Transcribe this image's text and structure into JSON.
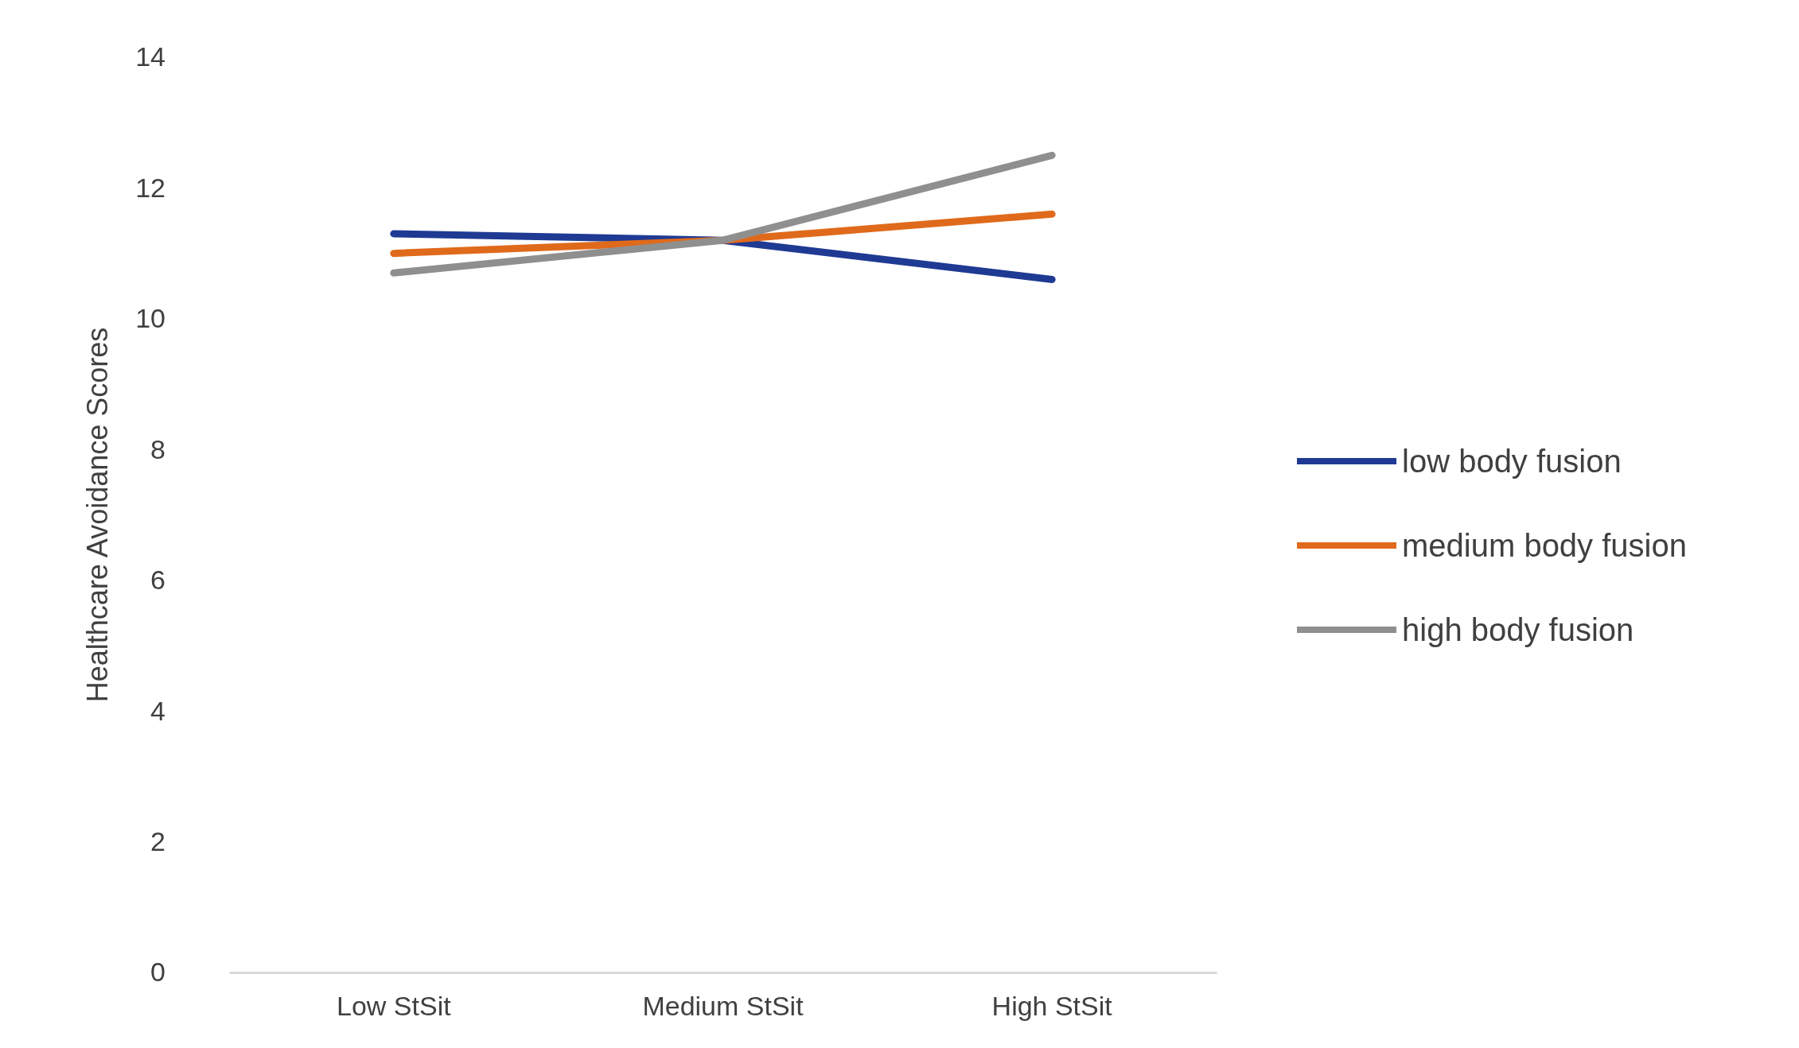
{
  "chart_data": {
    "type": "line",
    "ylabel": "Healthcare Avoidance Scores",
    "categories": [
      "Low StSit",
      "Medium StSit",
      "High StSit"
    ],
    "series": [
      {
        "name": "low body fusion",
        "color": "#1f3a93",
        "values": [
          11.3,
          11.2,
          10.6
        ]
      },
      {
        "name": "medium body fusion",
        "color": "#e06a1b",
        "values": [
          11.0,
          11.2,
          11.6
        ]
      },
      {
        "name": "high body fusion",
        "color": "#8f8f8f",
        "values": [
          10.7,
          11.2,
          12.5
        ]
      }
    ],
    "ylim": [
      0,
      14
    ],
    "yticks": [
      0,
      2,
      4,
      6,
      8,
      10,
      12,
      14
    ],
    "grid": false,
    "legend": "right",
    "marker": "none",
    "line_style": "solid"
  }
}
